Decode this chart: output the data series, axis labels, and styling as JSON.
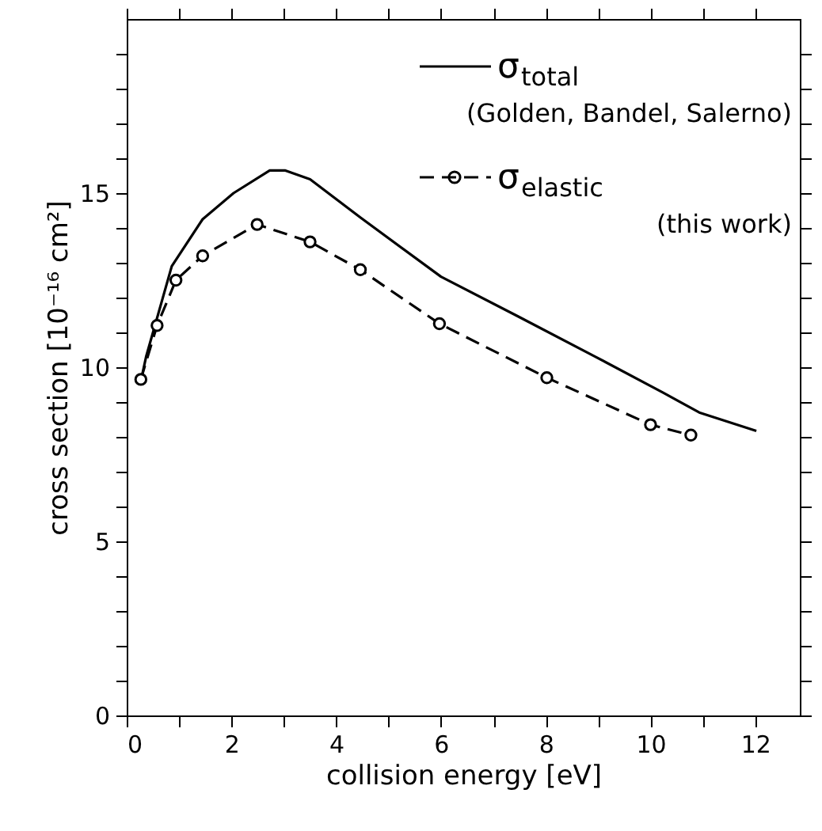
{
  "chart_data": {
    "type": "line",
    "xlabel": "collision energy [eV]",
    "ylabel": "cross section [10⁻¹⁶ cm²]",
    "xlim": [
      0,
      12.85
    ],
    "ylim": [
      0,
      20
    ],
    "xticks": [
      0,
      {
        "value": 1,
        "label": null
      },
      2,
      {
        "value": 3,
        "label": null
      },
      4,
      {
        "value": 5,
        "label": null
      },
      6,
      {
        "value": 7,
        "label": null
      },
      8,
      {
        "value": 9,
        "label": null
      },
      10,
      {
        "value": 11,
        "label": null
      },
      12
    ],
    "yticks": [
      0,
      {
        "value": 1,
        "label": null
      },
      {
        "value": 2,
        "label": null
      },
      {
        "value": 3,
        "label": null
      },
      {
        "value": 4,
        "label": null
      },
      5,
      {
        "value": 6,
        "label": null
      },
      {
        "value": 7,
        "label": null
      },
      {
        "value": 8,
        "label": null
      },
      {
        "value": 9,
        "label": null
      },
      10,
      {
        "value": 11,
        "label": null
      },
      {
        "value": 12,
        "label": null
      },
      {
        "value": 13,
        "label": null
      },
      {
        "value": 14,
        "label": null
      },
      15,
      {
        "value": 16,
        "label": null
      },
      {
        "value": 17,
        "label": null
      },
      {
        "value": 18,
        "label": null
      },
      {
        "value": 19,
        "label": null
      }
    ],
    "grid": false,
    "legend": "top right",
    "series": [
      {
        "name": "σ$_{total}$ (Golden, Bandel, Salerno)",
        "color": "#000000",
        "marker": "none",
        "line_style": "solid",
        "x": [
          0.27,
          0.37,
          0.86,
          1.45,
          2.04,
          2.73,
          3.03,
          3.5,
          4.46,
          6.0,
          7.47,
          8.95,
          10.24,
          10.93,
          12.02
        ],
        "values": [
          9.6,
          10.3,
          12.9,
          14.25,
          15.0,
          15.65,
          15.65,
          15.4,
          14.3,
          12.6,
          11.46,
          10.3,
          9.27,
          8.7,
          8.17
        ]
      },
      {
        "name": "σ$_{elastic}$ (this work)",
        "color": "#000000",
        "marker": "circle",
        "line_style": "dashed",
        "x": [
          0.27,
          0.58,
          0.94,
          1.45,
          2.49,
          3.5,
          4.46,
          5.97,
          8.02,
          10.0,
          10.77
        ],
        "values": [
          9.65,
          11.2,
          12.5,
          13.2,
          14.1,
          13.6,
          12.8,
          11.25,
          9.7,
          8.35,
          8.05
        ]
      }
    ]
  }
}
